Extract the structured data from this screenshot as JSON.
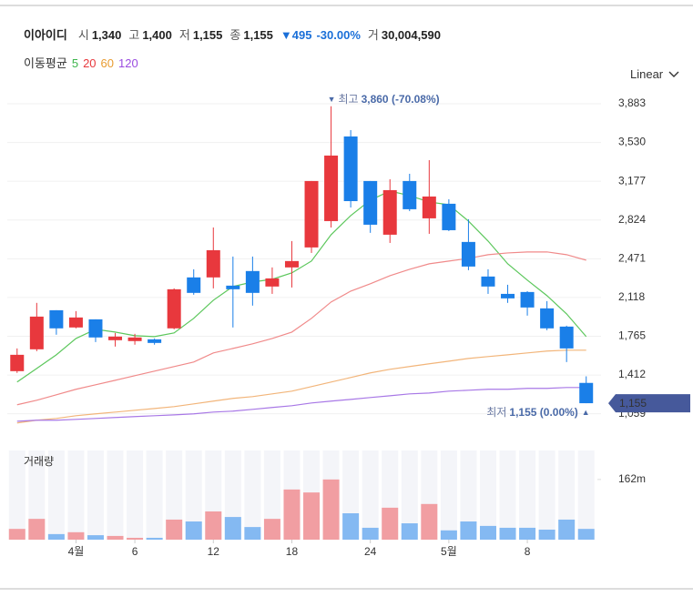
{
  "header": {
    "name": "이아이디",
    "items": [
      {
        "label": "시",
        "value": "1,340"
      },
      {
        "label": "고",
        "value": "1,400"
      },
      {
        "label": "저",
        "value": "1,155"
      },
      {
        "label": "종",
        "value": "1,155"
      }
    ],
    "change": "▼495",
    "change_pct": "-30.00%",
    "volume_item": {
      "label": "거",
      "value": "30,004,590"
    }
  },
  "scale_menu": "Linear",
  "chart_data": {
    "type": "candlestick",
    "categories": [
      null,
      null,
      null,
      "4월",
      null,
      null,
      "6",
      null,
      null,
      null,
      "12",
      null,
      null,
      null,
      "18",
      null,
      null,
      null,
      "24",
      null,
      null,
      null,
      "5월",
      null,
      null,
      null,
      "8",
      null,
      null,
      null
    ],
    "open": [
      1447,
      1646,
      2002,
      1845,
      1919,
      1729,
      1721,
      1737,
      1837,
      2301,
      2301,
      2226,
      2359,
      2218,
      2392,
      2574,
      2814,
      3585,
      3179,
      2690,
      3179,
      2839,
      2972,
      2624,
      2309,
      2151,
      2168,
      2019,
      1853,
      1340
    ],
    "high": [
      1654,
      2069,
      2002,
      1994,
      1919,
      1795,
      1787,
      1745,
      2201,
      2375,
      2756,
      2491,
      2491,
      2392,
      2632,
      3179,
      3860,
      3643,
      3179,
      3195,
      3245,
      3369,
      3013,
      2831,
      2375,
      2234,
      2176,
      2085,
      1861,
      1400
    ],
    "low": [
      1431,
      1629,
      1779,
      1837,
      1712,
      1671,
      1688,
      1688,
      1828,
      2143,
      2201,
      1845,
      2044,
      2151,
      2209,
      2524,
      2756,
      2938,
      2707,
      2615,
      2905,
      2698,
      2723,
      2367,
      2151,
      2069,
      1953,
      1820,
      1530,
      1155
    ],
    "close": [
      1596,
      1944,
      1837,
      1936,
      1754,
      1762,
      1754,
      1704,
      2193,
      2160,
      2549,
      2193,
      2160,
      2292,
      2450,
      3179,
      3411,
      2996,
      2781,
      3096,
      2922,
      3038,
      2731,
      2400,
      2218,
      2110,
      2027,
      1837,
      1654,
      1155
    ],
    "up_color": "#e8383d",
    "down_color": "#1a7fe8",
    "legend_title": "이동평균",
    "series": [
      {
        "name": "5",
        "color": "#3cb44b",
        "line_color": "#5cc75c",
        "values": [
          1348,
          1472,
          1596,
          1745,
          1828,
          1803,
          1770,
          1762,
          1795,
          1928,
          2093,
          2218,
          2259,
          2284,
          2342,
          2450,
          2690,
          2864,
          3005,
          3088,
          3046,
          2988,
          2963,
          2814,
          2632,
          2425,
          2276,
          2135,
          1969,
          1762
        ]
      },
      {
        "name": "20",
        "color": "#e8383d",
        "line_color": "#f08a8a",
        "values": [
          1141,
          1182,
          1232,
          1282,
          1323,
          1364,
          1406,
          1447,
          1489,
          1530,
          1613,
          1654,
          1696,
          1745,
          1803,
          1928,
          2077,
          2176,
          2243,
          2317,
          2375,
          2425,
          2450,
          2474,
          2508,
          2524,
          2533,
          2533,
          2508,
          2458
        ]
      },
      {
        "name": "60",
        "color": "#e89b30",
        "line_color": "#f2b57a",
        "values": [
          975,
          1000,
          1016,
          1041,
          1058,
          1074,
          1091,
          1107,
          1124,
          1149,
          1174,
          1199,
          1215,
          1240,
          1265,
          1306,
          1348,
          1389,
          1431,
          1464,
          1489,
          1514,
          1538,
          1563,
          1580,
          1596,
          1613,
          1630,
          1638,
          1638
        ]
      },
      {
        "name": "120",
        "color": "#9b4de0",
        "line_color": "#a878e6",
        "values": [
          991,
          1000,
          1000,
          1008,
          1016,
          1025,
          1033,
          1041,
          1049,
          1058,
          1074,
          1083,
          1099,
          1116,
          1132,
          1157,
          1174,
          1190,
          1207,
          1223,
          1240,
          1248,
          1265,
          1273,
          1282,
          1282,
          1290,
          1290,
          1298,
          1298
        ]
      }
    ],
    "ylim": [
      940,
      3999
    ],
    "yticks": [
      {
        "value": 3883,
        "label": "3,883"
      },
      {
        "value": 3530,
        "label": "3,530"
      },
      {
        "value": 3177,
        "label": "3,177"
      },
      {
        "value": 2824,
        "label": "2,824"
      },
      {
        "value": 2471,
        "label": "2,471"
      },
      {
        "value": 2118,
        "label": "2,118"
      },
      {
        "value": 1765,
        "label": "1,765"
      },
      {
        "value": 1412,
        "label": "1,412"
      },
      {
        "value": 1059,
        "label": "1,059"
      }
    ],
    "grid": true,
    "high_annotation": {
      "marker": "▼",
      "label": "최고",
      "value": "3,860 (-70.08%)"
    },
    "low_annotation": {
      "marker": "▲",
      "label": "최저",
      "value": "1,155 (0.00%)"
    },
    "last_price": {
      "value": 1155,
      "label": "1,155"
    },
    "volume": {
      "title": "거래량",
      "values": [
        29,
        56,
        15,
        20,
        12,
        10,
        5,
        5,
        54,
        49,
        76,
        61,
        34,
        56,
        135,
        127,
        162,
        71,
        32,
        86,
        44,
        96,
        25,
        49,
        37,
        32,
        32,
        27,
        54,
        29
      ],
      "up_color": "#f19ea2",
      "down_color": "#84b9f2",
      "ylim": [
        0,
        240
      ],
      "yticks": [
        {
          "value": 162,
          "label": "162m"
        }
      ]
    }
  }
}
